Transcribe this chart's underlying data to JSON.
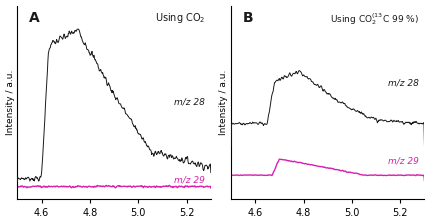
{
  "xlim": [
    4.5,
    5.3
  ],
  "xticks": [
    4.6,
    4.8,
    5.0,
    5.2
  ],
  "panel_A_label": "A",
  "panel_B_label": "B",
  "panel_A_title": "Using CO$_2$",
  "ylabel": "Intensity / a.u.",
  "black_color": "#1a1a1a",
  "magenta_color": "#d820b0",
  "mz28_label": "m/z 28",
  "mz29_label": "m/z 29",
  "bg_color": "#ffffff",
  "fig_width": 4.3,
  "fig_height": 2.24,
  "dpi": 100
}
